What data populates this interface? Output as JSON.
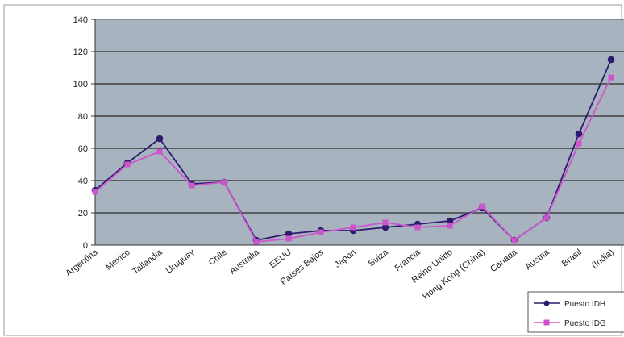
{
  "chart_data": {
    "type": "line",
    "categories": [
      "Argentina",
      "Mexico",
      "Tailandia",
      "Uruguay",
      "Chile",
      "Australia",
      "EEUU",
      "Países Bajos",
      "Japón",
      "Suiza",
      "Francia",
      "Reino Unido",
      "Hong Kong (China)",
      "Canada",
      "Austria",
      "Brasil",
      "(India)"
    ],
    "series": [
      {
        "name": "Puesto IDH",
        "color": "#2e1a6e",
        "marker": "circle",
        "values": [
          34,
          51,
          66,
          38,
          39,
          3,
          7,
          9,
          9,
          11,
          13,
          15,
          23,
          3,
          17,
          69,
          115
        ]
      },
      {
        "name": "Puesto IDG",
        "color": "#cc55cc",
        "marker": "square",
        "values": [
          33,
          50,
          58,
          37,
          39,
          2,
          4,
          8,
          11,
          14,
          11,
          12,
          24,
          3,
          17,
          63,
          104
        ]
      }
    ],
    "yticks": [
      0,
      20,
      40,
      60,
      80,
      100,
      120,
      140
    ],
    "ylim": [
      0,
      140
    ],
    "grid": true,
    "legend_position": "bottom-right",
    "plot_background": "#a8b3c0",
    "title": "",
    "xlabel": "",
    "ylabel": ""
  }
}
